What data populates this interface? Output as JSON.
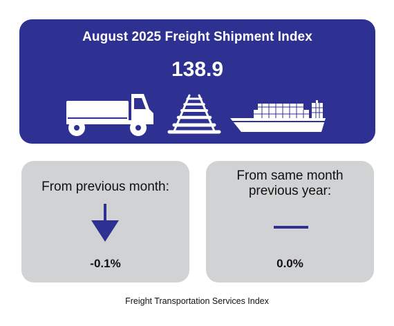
{
  "header": {
    "title": "August 2025 Freight Shipment Index",
    "value": "138.9",
    "background_color": "#2e3192",
    "icons": [
      "truck-icon",
      "railroad-track-icon",
      "container-ship-icon"
    ]
  },
  "cards": {
    "previous_month": {
      "label_line1": "From previous month:",
      "value": "-0.1%",
      "indicator": "arrow-down"
    },
    "previous_year": {
      "label_line1": "From same month",
      "label_line2": "previous year:",
      "value": "0.0%",
      "indicator": "flat-dash"
    }
  },
  "footer": {
    "text": "Freight Transportation Services Index"
  }
}
